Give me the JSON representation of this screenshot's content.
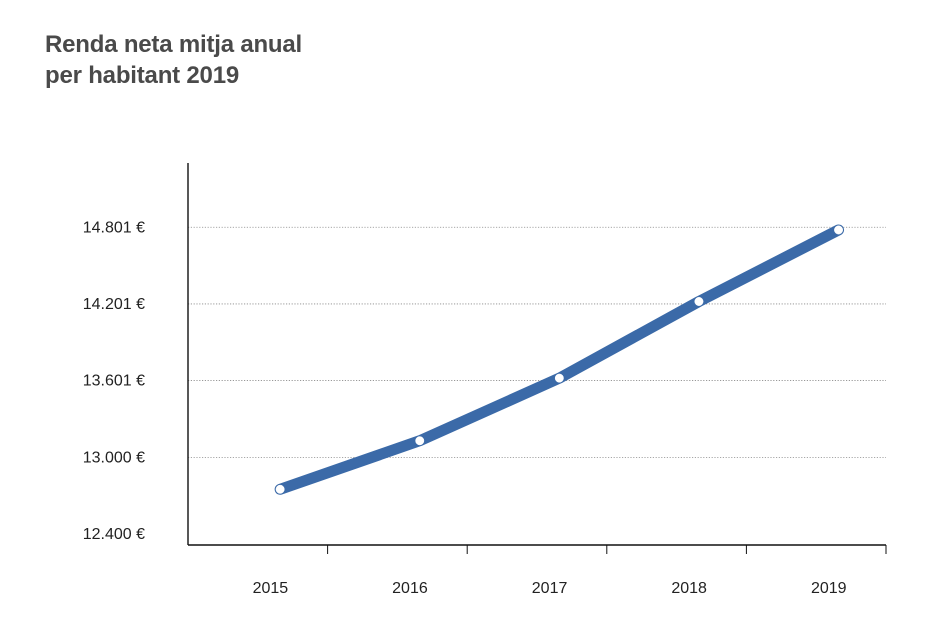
{
  "title_lines": [
    "Renda neta mitja anual",
    "per habitant 2019"
  ],
  "colors": {
    "line": "#3b6aa8",
    "marker_fill": "#ffffff",
    "grid": "#8a8a8a",
    "axis": "#111111",
    "title": "#4a4a4a"
  },
  "chart_data": {
    "type": "line",
    "title": "Renda neta mitja anual per habitant 2019",
    "xlabel": "",
    "ylabel": "",
    "categories": [
      "2015",
      "2016",
      "2017",
      "2018",
      "2019"
    ],
    "values": [
      12750,
      13130,
      13620,
      14220,
      14780
    ],
    "ylim": [
      12400,
      15300
    ],
    "y_ticks": [
      12400,
      13000,
      13601,
      14201,
      14801
    ],
    "y_tick_labels": [
      "12.400 €",
      "13.000 €",
      "13.601 €",
      "14.201 €",
      "14.801 €"
    ],
    "grid": "horizontal dotted",
    "legend": "none"
  }
}
